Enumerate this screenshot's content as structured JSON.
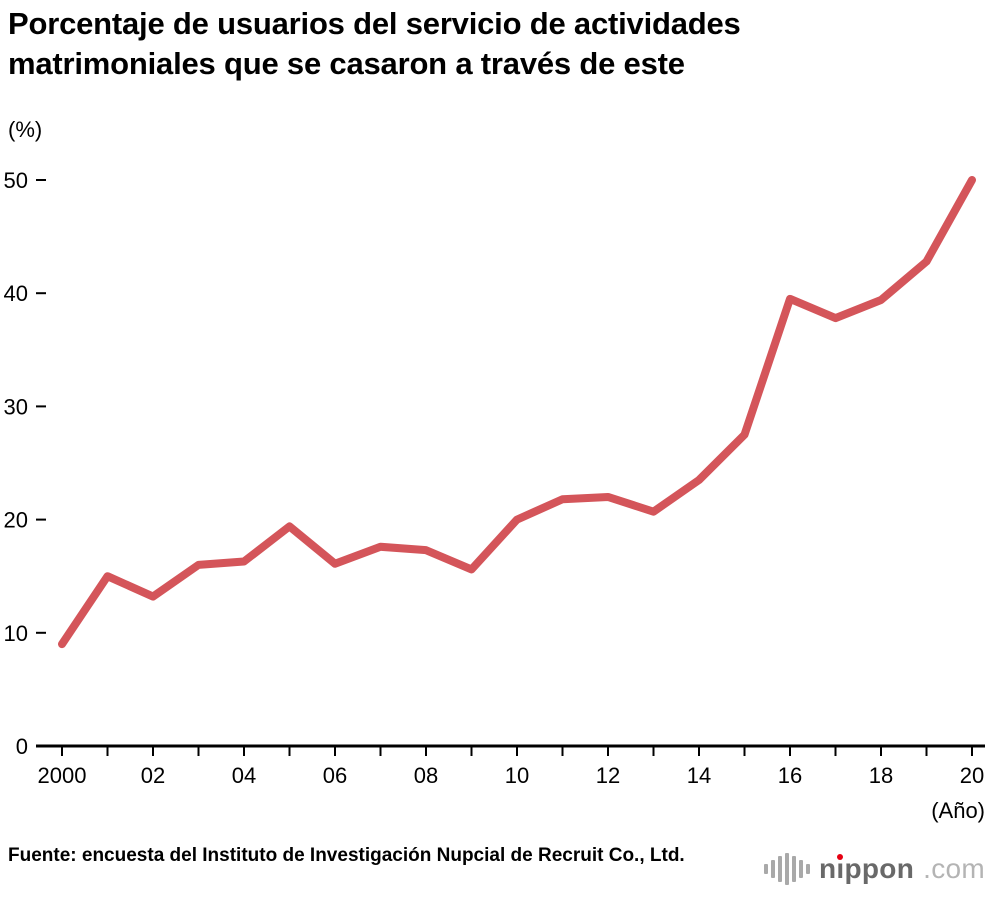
{
  "title": "Porcentaje de usuarios del servicio de actividades matrimoniales que se casaron a través de este",
  "y_axis_unit": "(%)",
  "x_axis_unit": "(Año)",
  "source": "Fuente: encuesta del Instituto de Investigación Nupcial de Recruit Co., Ltd.",
  "logo": {
    "part1": "n",
    "part2": "ı",
    "part3": "ppon",
    "tld": ".com"
  },
  "colors": {
    "line": "#d4555a",
    "axis": "#000000",
    "logo_icon": "#a9a9a9",
    "logo_name": "#696969",
    "logo_tld": "#b4b4b4",
    "logo_dot": "#e60012"
  },
  "chart_data": {
    "type": "line",
    "title": "Porcentaje de usuarios del servicio de actividades matrimoniales que se casaron a través de este",
    "xlabel": "(Año)",
    "ylabel": "(%)",
    "x": [
      2000,
      2001,
      2002,
      2003,
      2004,
      2005,
      2006,
      2007,
      2008,
      2009,
      2010,
      2011,
      2012,
      2013,
      2014,
      2015,
      2016,
      2017,
      2018,
      2019,
      2020
    ],
    "values": [
      9.0,
      15.0,
      13.2,
      16.0,
      16.3,
      19.4,
      16.1,
      17.6,
      17.3,
      15.6,
      20.0,
      21.8,
      22.0,
      20.7,
      23.5,
      27.5,
      39.5,
      37.8,
      39.4,
      42.8,
      50.0
    ],
    "x_tick_labels": [
      "2000",
      "02",
      "04",
      "06",
      "08",
      "10",
      "12",
      "14",
      "16",
      "18",
      "20"
    ],
    "y_ticks": [
      0,
      10,
      20,
      30,
      40,
      50
    ],
    "ylim": [
      0,
      50
    ],
    "xlim": [
      2000,
      2020
    ],
    "grid": false,
    "legend": false
  }
}
